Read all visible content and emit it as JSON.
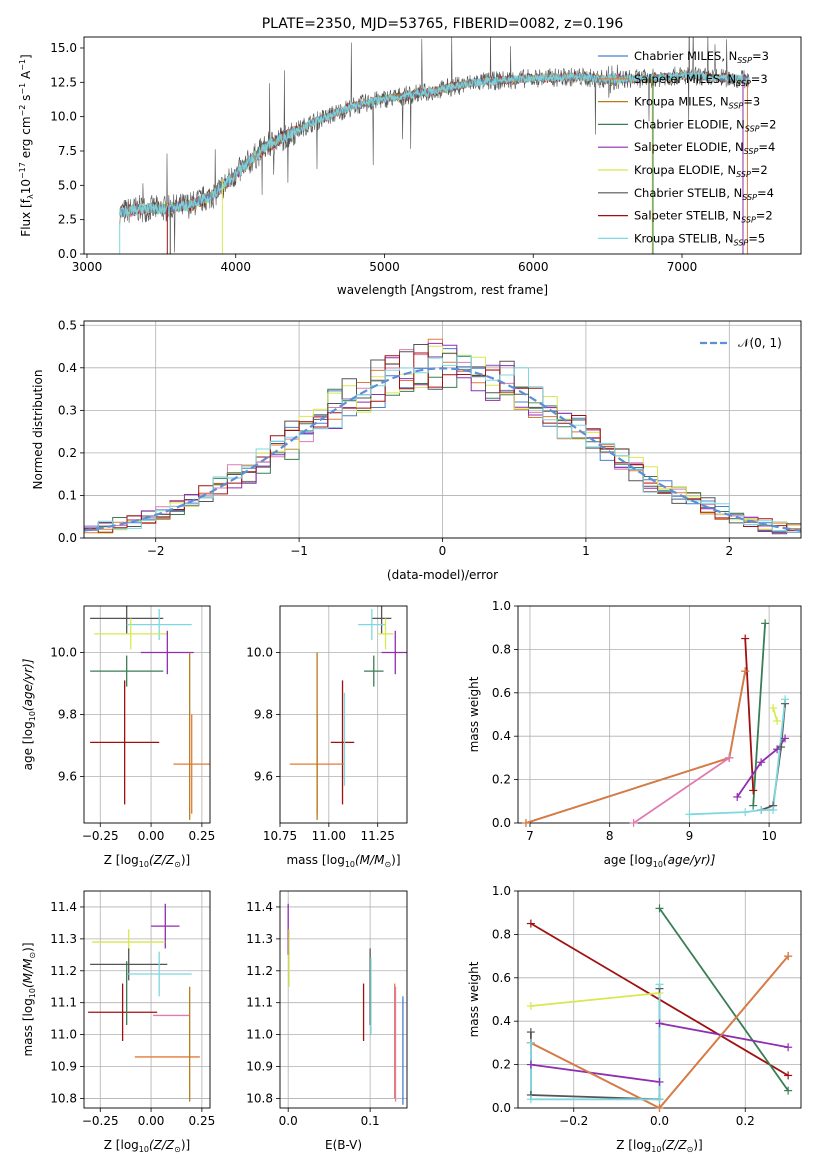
{
  "colors": {
    "chabrier_miles": "#4a7fd0",
    "salpeter_miles": "#e07a3a",
    "kroupa_miles": "#b87a1e",
    "chabrier_elodie": "#3a7d55",
    "salpeter_elodie": "#8e2eb0",
    "kroupa_elodie": "#d8e850",
    "chabrier_stelib": "#555555",
    "salpeter_stelib": "#a01010",
    "kroupa_stelib": "#7fd8e0",
    "pink": "#e07ab0",
    "normal_curve": "#5b8fd6"
  },
  "chart_data": [
    {
      "id": "spectrum",
      "type": "line",
      "title": "PLATE=2350, MJD=53765, FIBERID=0082, z=0.196",
      "xlabel": "wavelength [Angstrom, rest frame]",
      "ylabel": "Flux [f",
      "ylabel_sub": "λ",
      "ylabel_rest": "10",
      "ylabel_exp1": "−17",
      "ylabel_mid": " erg cm",
      "ylabel_exp2": "−2",
      "ylabel_mid2": " s",
      "ylabel_exp3": "−1",
      "ylabel_end": " A",
      "ylabel_exp4": "−1",
      "ylabel_close": "]",
      "xlim": [
        2980,
        7800
      ],
      "ylim": [
        0,
        15.8
      ],
      "xticks": [
        3000,
        4000,
        5000,
        6000,
        7000
      ],
      "yticks": [
        0.0,
        2.5,
        5.0,
        7.5,
        10.0,
        12.5,
        15.0
      ],
      "legend_placement": "upper-right",
      "legend": [
        {
          "label": "Chabrier MILES, N",
          "sub": "SSP",
          "val": "=3",
          "color_key": "chabrier_miles"
        },
        {
          "label": "Salpeter MILES, N",
          "sub": "SSP",
          "val": "=3",
          "color_key": "salpeter_miles"
        },
        {
          "label": "Kroupa MILES, N",
          "sub": "SSP",
          "val": "=3",
          "color_key": "kroupa_miles"
        },
        {
          "label": "Chabrier ELODIE, N",
          "sub": "SSP",
          "val": "=2",
          "color_key": "chabrier_elodie"
        },
        {
          "label": "Salpeter ELODIE, N",
          "sub": "SSP",
          "val": "=4",
          "color_key": "salpeter_elodie"
        },
        {
          "label": "Kroupa ELODIE, N",
          "sub": "SSP",
          "val": "=2",
          "color_key": "kroupa_elodie"
        },
        {
          "label": "Chabrier STELIB, N",
          "sub": "SSP",
          "val": "=4",
          "color_key": "chabrier_stelib"
        },
        {
          "label": "Salpeter STELIB, N",
          "sub": "SSP",
          "val": "=2",
          "color_key": "salpeter_stelib"
        },
        {
          "label": "Kroupa STELIB, N",
          "sub": "SSP",
          "val": "=5",
          "color_key": "kroupa_stelib"
        }
      ],
      "continuum": [
        [
          3220,
          3.0
        ],
        [
          3350,
          3.3
        ],
        [
          3550,
          3.3
        ],
        [
          3700,
          3.6
        ],
        [
          3850,
          4.3
        ],
        [
          4000,
          5.8
        ],
        [
          4200,
          7.8
        ],
        [
          4500,
          9.5
        ],
        [
          4800,
          10.8
        ],
        [
          5000,
          11.3
        ],
        [
          5300,
          11.8
        ],
        [
          5600,
          12.5
        ],
        [
          6000,
          12.8
        ],
        [
          6300,
          12.9
        ],
        [
          6500,
          12.7
        ],
        [
          6800,
          12.8
        ],
        [
          7000,
          13.0
        ],
        [
          7300,
          12.8
        ],
        [
          7450,
          12.7
        ]
      ]
    },
    {
      "id": "residuals",
      "type": "step",
      "xlabel": "(data-model)/error",
      "ylabel": "Normed distribution",
      "xlim": [
        -2.5,
        2.5
      ],
      "ylim": [
        0,
        0.51
      ],
      "xticks": [
        -2,
        -1,
        0,
        1,
        2
      ],
      "yticks": [
        0.0,
        0.1,
        0.2,
        0.3,
        0.4,
        0.5
      ],
      "grid": true,
      "legend_placement": "top-right",
      "normal_label": "𝒩(0, 1)",
      "bin_width": 0.1,
      "normal_curve": "standard normal, mean 0, sigma 1"
    },
    {
      "id": "age_vs_Z",
      "type": "errorbar",
      "xlabel": "Z [log",
      "xlabel_sub": "10",
      "xlabel_rest": "(Z/Z",
      "xlabel_sun": "⊙",
      "xlabel_close": ")]",
      "ylabel": "age  [log",
      "ylabel_sub": "10",
      "ylabel_rest": "(age/yr)]",
      "xlim": [
        -0.33,
        0.29
      ],
      "ylim": [
        9.45,
        10.15
      ],
      "xticks": [
        -0.25,
        0.0,
        0.25
      ],
      "xtick_labels": [
        "−0.25",
        "0.00",
        "0.25"
      ],
      "yticks": [
        9.6,
        9.8,
        10.0
      ],
      "grid": true,
      "points": [
        {
          "x": -0.12,
          "y": 10.11,
          "xerr": 0.18,
          "yerr": 0.05,
          "color_key": "chabrier_stelib"
        },
        {
          "x": 0.04,
          "y": 10.09,
          "xerr": 0.16,
          "yerr": 0.05,
          "color_key": "kroupa_stelib"
        },
        {
          "x": -0.1,
          "y": 10.06,
          "xerr": 0.18,
          "yerr": 0.05,
          "color_key": "kroupa_elodie"
        },
        {
          "x": 0.08,
          "y": 10.0,
          "xerr": 0.13,
          "yerr": 0.07,
          "color_key": "salpeter_elodie"
        },
        {
          "x": -0.12,
          "y": 9.94,
          "xerr": 0.18,
          "yerr": 0.05,
          "color_key": "chabrier_elodie"
        },
        {
          "x": -0.13,
          "y": 9.71,
          "xerr": 0.17,
          "yerr": 0.2,
          "color_key": "salpeter_stelib"
        },
        {
          "x": 0.2,
          "y": 9.64,
          "xerr": 0.09,
          "yerr": 0.16,
          "color_key": "salpeter_miles"
        },
        {
          "x": 0.19,
          "y": 9.73,
          "xerr": 0.0,
          "yerr": 0.27,
          "color_key": "kroupa_miles"
        }
      ]
    },
    {
      "id": "age_vs_mass",
      "type": "errorbar",
      "xlabel": "mass [log",
      "xlabel_sub": "10",
      "xlabel_rest": "(M/M",
      "xlabel_sun": "⊙",
      "xlabel_close": ")]",
      "xlim": [
        10.75,
        11.4
      ],
      "ylim": [
        9.45,
        10.15
      ],
      "xticks": [
        10.75,
        11.0,
        11.25
      ],
      "xtick_labels": [
        "10.75",
        "11.00",
        "11.25"
      ],
      "yticks": [
        9.6,
        9.8,
        10.0
      ],
      "grid": true,
      "points": [
        {
          "x": 11.27,
          "y": 10.11,
          "xerr": 0.05,
          "yerr": 0.05,
          "color_key": "chabrier_stelib"
        },
        {
          "x": 11.22,
          "y": 10.09,
          "xerr": 0.07,
          "yerr": 0.05,
          "color_key": "kroupa_stelib"
        },
        {
          "x": 11.29,
          "y": 10.06,
          "xerr": 0.04,
          "yerr": 0.05,
          "color_key": "kroupa_elodie"
        },
        {
          "x": 11.34,
          "y": 10.0,
          "xerr": 0.07,
          "yerr": 0.07,
          "color_key": "salpeter_elodie"
        },
        {
          "x": 11.23,
          "y": 9.94,
          "xerr": 0.05,
          "yerr": 0.05,
          "color_key": "chabrier_elodie"
        },
        {
          "x": 11.07,
          "y": 9.71,
          "xerr": 0.06,
          "yerr": 0.2,
          "color_key": "salpeter_stelib"
        },
        {
          "x": 10.94,
          "y": 9.64,
          "xerr": 0.14,
          "yerr": 0.16,
          "color_key": "salpeter_miles"
        },
        {
          "x": 10.94,
          "y": 9.73,
          "xerr": 0.0,
          "yerr": 0.27,
          "color_key": "kroupa_miles"
        },
        {
          "x": 11.08,
          "y": 9.72,
          "xerr": 0.0,
          "yerr": 0.15,
          "color_key": "kroupa_stelib"
        }
      ]
    },
    {
      "id": "massweight_vs_age",
      "type": "line",
      "xlabel": "age  [log",
      "xlabel_sub": "10",
      "xlabel_rest": "(age/yr)]",
      "ylabel": "mass weight",
      "xlim": [
        6.85,
        10.4
      ],
      "ylim": [
        0,
        1.0
      ],
      "xticks": [
        7,
        8,
        9,
        10
      ],
      "yticks": [
        0.0,
        0.2,
        0.4,
        0.6,
        0.8,
        1.0
      ],
      "grid": true,
      "series": [
        {
          "color_key": "chabrier_miles",
          "x": [
            6.95,
            9.5,
            9.7
          ],
          "y": [
            0.0,
            0.3,
            0.7
          ]
        },
        {
          "color_key": "salpeter_miles",
          "x": [
            6.95,
            9.5,
            9.7
          ],
          "y": [
            0.0,
            0.3,
            0.7
          ]
        },
        {
          "color_key": "pink",
          "x": [
            8.3,
            9.5
          ],
          "y": [
            0.0,
            0.3
          ]
        },
        {
          "color_key": "salpeter_stelib",
          "x": [
            9.7,
            9.8
          ],
          "y": [
            0.85,
            0.15
          ]
        },
        {
          "color_key": "chabrier_elodie",
          "x": [
            9.8,
            9.95
          ],
          "y": [
            0.08,
            0.92
          ]
        },
        {
          "color_key": "salpeter_elodie",
          "x": [
            9.6,
            9.9,
            10.1,
            10.2
          ],
          "y": [
            0.12,
            0.28,
            0.34,
            0.39
          ]
        },
        {
          "color_key": "kroupa_elodie",
          "x": [
            10.05,
            10.1
          ],
          "y": [
            0.53,
            0.47
          ]
        },
        {
          "color_key": "chabrier_stelib",
          "x": [
            9.9,
            10.05,
            10.15,
            10.2
          ],
          "y": [
            0.06,
            0.08,
            0.35,
            0.55
          ]
        },
        {
          "color_key": "kroupa_stelib",
          "x": [
            9.0,
            9.7,
            9.9,
            10.05,
            10.2
          ],
          "y": [
            0.04,
            0.05,
            0.06,
            0.06,
            0.57
          ]
        }
      ]
    },
    {
      "id": "mass_vs_Z",
      "type": "errorbar",
      "xlabel": "Z [log",
      "xlabel_sub": "10",
      "xlabel_rest": "(Z/Z",
      "xlabel_sun": "⊙",
      "xlabel_close": ")]",
      "ylabel": "mass [log",
      "ylabel_sub": "10",
      "ylabel_rest": "(M/M",
      "ylabel_sun": "⊙",
      "ylabel_close": ")]",
      "xlim": [
        -0.33,
        0.29
      ],
      "ylim": [
        10.77,
        11.45
      ],
      "xticks": [
        -0.25,
        0.0,
        0.25
      ],
      "xtick_labels": [
        "−0.25",
        "0.00",
        "0.25"
      ],
      "yticks": [
        10.8,
        10.9,
        11.0,
        11.1,
        11.2,
        11.3,
        11.4
      ],
      "grid": true,
      "points": [
        {
          "x": 0.07,
          "y": 11.34,
          "xerr": 0.07,
          "yerr": 0.07,
          "color_key": "salpeter_elodie"
        },
        {
          "x": -0.11,
          "y": 11.29,
          "xerr": 0.18,
          "yerr": 0.04,
          "color_key": "kroupa_elodie"
        },
        {
          "x": -0.11,
          "y": 11.22,
          "xerr": 0.19,
          "yerr": 0.05,
          "color_key": "chabrier_stelib"
        },
        {
          "x": 0.04,
          "y": 11.19,
          "xerr": 0.16,
          "yerr": 0.07,
          "color_key": "kroupa_stelib"
        },
        {
          "x": -0.14,
          "y": 11.07,
          "xerr": 0.17,
          "yerr": 0.09,
          "color_key": "salpeter_stelib"
        },
        {
          "x": 0.1,
          "y": 11.06,
          "xerr": 0.09,
          "yerr": 0.0,
          "color_key": "pink"
        },
        {
          "x": 0.08,
          "y": 10.93,
          "xerr": 0.16,
          "yerr": 0.0,
          "color_key": "salpeter_miles"
        },
        {
          "x": 0.19,
          "y": 10.97,
          "xerr": 0.0,
          "yerr": 0.18,
          "color_key": "kroupa_miles"
        },
        {
          "x": -0.12,
          "y": 11.13,
          "xerr": 0.0,
          "yerr": 0.1,
          "color_key": "chabrier_elodie"
        }
      ]
    },
    {
      "id": "mass_vs_ebv",
      "type": "errorbar",
      "xlabel": "E(B-V)",
      "xlim": [
        -0.01,
        0.145
      ],
      "ylim": [
        10.77,
        11.45
      ],
      "xticks": [
        0.0,
        0.1
      ],
      "xtick_labels": [
        "0.0",
        "0.1"
      ],
      "yticks": [
        10.8,
        10.9,
        11.0,
        11.1,
        11.2,
        11.3,
        11.4
      ],
      "grid": true,
      "points": [
        {
          "x": 0.0,
          "y": 11.33,
          "xerr": 0,
          "yerr": 0.08,
          "color_key": "salpeter_elodie"
        },
        {
          "x": 0.001,
          "y": 11.24,
          "xerr": 0,
          "yerr": 0.09,
          "color_key": "kroupa_elodie"
        },
        {
          "x": 0.092,
          "y": 11.07,
          "xerr": 0,
          "yerr": 0.09,
          "color_key": "salpeter_stelib"
        },
        {
          "x": 0.1,
          "y": 11.15,
          "xerr": 0,
          "yerr": 0.12,
          "color_key": "chabrier_stelib"
        },
        {
          "x": 0.101,
          "y": 11.12,
          "xerr": 0,
          "yerr": 0.12,
          "color_key": "kroupa_stelib"
        },
        {
          "x": 0.13,
          "y": 10.98,
          "xerr": 0,
          "yerr": 0.18,
          "color_key": "salpeter_miles"
        },
        {
          "x": 0.131,
          "y": 10.97,
          "xerr": 0,
          "yerr": 0.18,
          "color_key": "pink"
        },
        {
          "x": 0.14,
          "y": 10.95,
          "xerr": 0,
          "yerr": 0.17,
          "color_key": "chabrier_miles"
        }
      ]
    },
    {
      "id": "massweight_vs_Z",
      "type": "line",
      "xlabel": "Z [log",
      "xlabel_sub": "10",
      "xlabel_rest": "(Z/Z",
      "xlabel_sun": "⊙",
      "xlabel_close": ")]",
      "ylabel": "mass weight",
      "xlim": [
        -0.33,
        0.33
      ],
      "ylim": [
        0,
        1.0
      ],
      "xticks": [
        -0.2,
        0.0,
        0.2
      ],
      "xtick_labels": [
        "−0.2",
        "0.0",
        "0.2"
      ],
      "yticks": [
        0.0,
        0.2,
        0.4,
        0.6,
        0.8,
        1.0
      ],
      "grid": true,
      "series": [
        {
          "color_key": "salpeter_stelib",
          "x": [
            -0.3,
            0.3
          ],
          "y": [
            0.85,
            0.15
          ]
        },
        {
          "color_key": "chabrier_elodie",
          "x": [
            0.0,
            0.3
          ],
          "y": [
            0.92,
            0.08
          ]
        },
        {
          "color_key": "kroupa_elodie",
          "x": [
            -0.3,
            0.0
          ],
          "y": [
            0.47,
            0.53
          ]
        },
        {
          "color_key": "salpeter_elodie",
          "x": [
            -0.3,
            0.0
          ],
          "y": [
            0.2,
            0.12
          ]
        },
        {
          "color_key": "salpeter_elodie",
          "x": [
            0.0,
            0.3
          ],
          "y": [
            0.39,
            0.28
          ]
        },
        {
          "color_key": "chabrier_stelib",
          "x": [
            -0.3,
            -0.3,
            0.0,
            0.0
          ],
          "y": [
            0.35,
            0.06,
            0.04,
            0.55
          ]
        },
        {
          "color_key": "chabrier_miles",
          "x": [
            -0.3,
            0.0,
            0.3
          ],
          "y": [
            0.3,
            0.0,
            0.7
          ]
        },
        {
          "color_key": "salpeter_miles",
          "x": [
            -0.3,
            0.0,
            0.3
          ],
          "y": [
            0.3,
            0.0,
            0.7
          ]
        },
        {
          "color_key": "kroupa_stelib",
          "x": [
            -0.3,
            -0.3,
            0.0,
            0.0
          ],
          "y": [
            0.3,
            0.04,
            0.04,
            0.57
          ]
        }
      ]
    }
  ]
}
